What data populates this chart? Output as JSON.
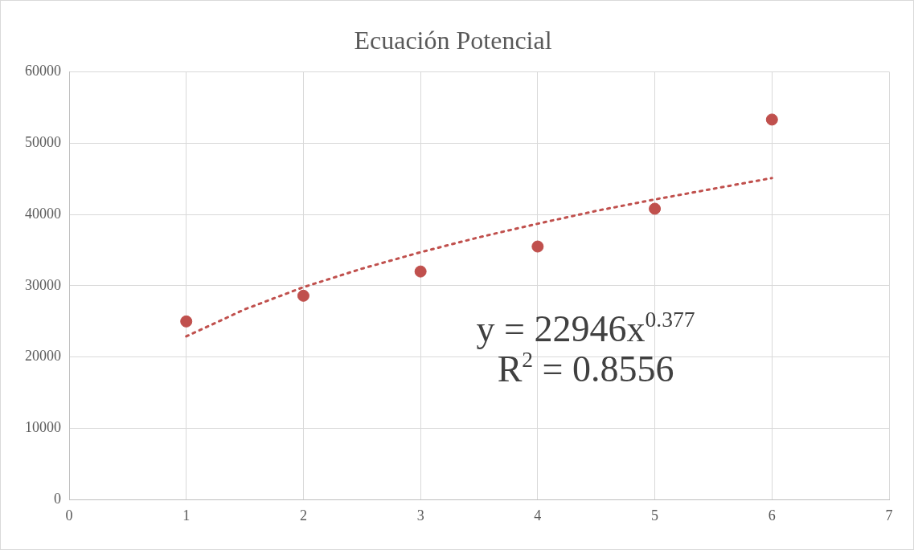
{
  "chart_data": {
    "type": "scatter",
    "title": "Ecuación Potencial",
    "xlim": [
      0,
      7
    ],
    "xticks": [
      0,
      1,
      2,
      3,
      4,
      5,
      6,
      7
    ],
    "ylim": [
      0,
      60000
    ],
    "yticks": [
      0,
      10000,
      20000,
      30000,
      40000,
      50000,
      60000
    ],
    "grid": true,
    "legend": false,
    "series": [
      {
        "color": "#c0504d",
        "marker": "circle",
        "x": [
          1,
          2,
          3,
          4,
          5,
          6
        ],
        "values": [
          25000,
          28600,
          32000,
          35500,
          40800,
          53300
        ]
      },
      {
        "type": "line",
        "color": "#c0504d",
        "marker": "none",
        "line_style": "dotted",
        "x": [
          1,
          1.5,
          2,
          2.5,
          3,
          3.5,
          4,
          4.5,
          5,
          5.5,
          6
        ],
        "values": [
          22900,
          26700,
          29800,
          32400,
          34700,
          36800,
          38700,
          40500,
          42100,
          43600,
          45100
        ]
      }
    ],
    "annotations": [
      "y = 22946x$^{0.377}$",
      "R$^{2}$ = 0.8556"
    ]
  }
}
